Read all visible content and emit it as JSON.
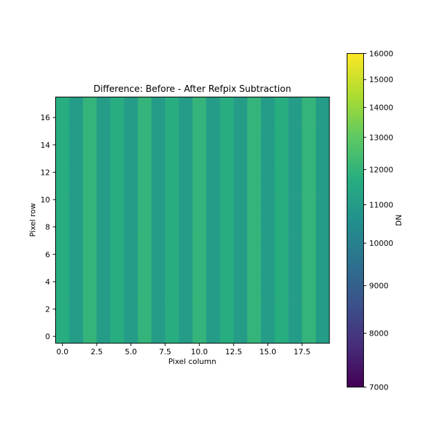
{
  "chart_data": {
    "type": "heatmap",
    "title": "Difference: Before - After Refpix Subtraction",
    "xlabel": "Pixel column",
    "ylabel": "Pixel row",
    "xlim": [
      -0.5,
      19.5
    ],
    "ylim": [
      -0.5,
      17.5
    ],
    "x_ticks": [
      0.0,
      2.5,
      5.0,
      7.5,
      10.0,
      12.5,
      15.0,
      17.5
    ],
    "x_tick_labels": [
      "0.0",
      "2.5",
      "5.0",
      "7.5",
      "10.0",
      "12.5",
      "15.0",
      "17.5"
    ],
    "y_ticks": [
      0,
      2,
      4,
      6,
      8,
      10,
      12,
      14,
      16
    ],
    "y_tick_labels": [
      "0",
      "2",
      "4",
      "6",
      "8",
      "10",
      "12",
      "14",
      "16"
    ],
    "n_columns": 20,
    "n_rows": 18,
    "column_values": [
      11700,
      11000,
      12000,
      11000,
      11700,
      11000,
      12000,
      11000,
      11700,
      11000,
      12000,
      11000,
      11700,
      11000,
      12000,
      11000,
      11700,
      11000,
      12000,
      11000
    ],
    "colorbar": {
      "label": "DN",
      "colormap": "viridis",
      "scale": "log",
      "range": [
        7000,
        16000
      ],
      "ticks": [
        7000,
        8000,
        9000,
        10000,
        11000,
        12000,
        13000,
        14000,
        15000,
        16000
      ],
      "tick_labels": [
        "7000",
        "8000",
        "9000",
        "10000",
        "11000",
        "12000",
        "13000",
        "14000",
        "15000",
        "16000"
      ]
    }
  }
}
